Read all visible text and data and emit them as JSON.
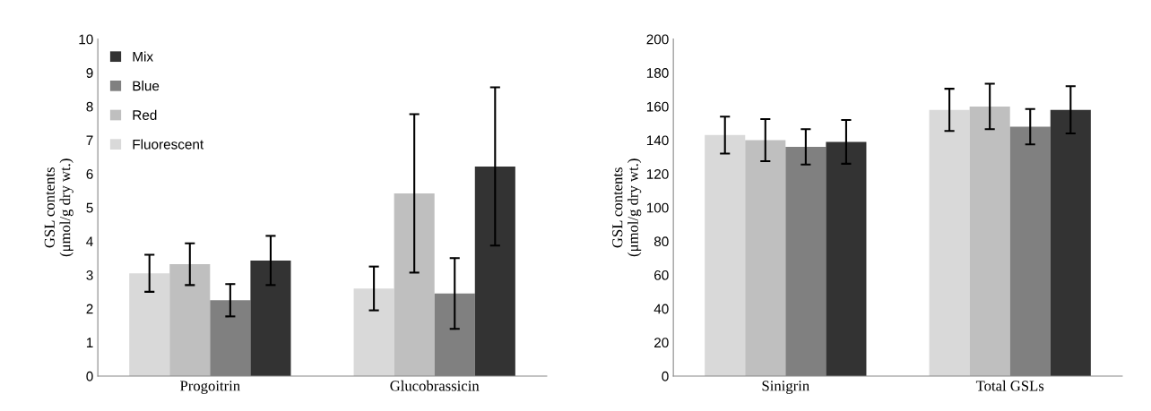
{
  "chart_data": [
    {
      "type": "bar",
      "ylabel": "GSL contents\n(μmol/g dry wt.)",
      "categories": [
        "Progoitrin",
        "Glucobrassicin"
      ],
      "ylim": [
        0,
        10
      ],
      "yticks": [
        0,
        1,
        2,
        3,
        4,
        5,
        6,
        7,
        8,
        9,
        10
      ],
      "grid": false,
      "legend": "top left",
      "series": [
        {
          "name": "Fluorescent",
          "color": "#d9d9d9",
          "values": [
            3.05,
            2.6
          ],
          "errors": [
            0.55,
            0.65
          ]
        },
        {
          "name": "Red",
          "color": "#bfbfbf",
          "values": [
            3.32,
            5.42
          ],
          "errors": [
            0.62,
            2.35
          ]
        },
        {
          "name": "Blue",
          "color": "#808080",
          "values": [
            2.25,
            2.45
          ],
          "errors": [
            0.48,
            1.05
          ]
        },
        {
          "name": "Mix",
          "color": "#333333",
          "values": [
            3.43,
            6.22
          ],
          "errors": [
            0.73,
            2.35
          ]
        }
      ]
    },
    {
      "type": "bar",
      "ylabel": "GSL contents\n(μmol/g dry wt.)",
      "categories": [
        "Sinigrin",
        "Total GSLs"
      ],
      "ylim": [
        0,
        200
      ],
      "yticks": [
        0,
        20,
        40,
        60,
        80,
        100,
        120,
        140,
        160,
        180,
        200
      ],
      "grid": false,
      "series": [
        {
          "color": "#d9d9d9",
          "values": [
            143,
            158
          ],
          "errors": [
            11,
            12.5
          ]
        },
        {
          "color": "#bfbfbf",
          "values": [
            140,
            160
          ],
          "errors": [
            12.5,
            13.5
          ]
        },
        {
          "color": "#808080",
          "values": [
            136,
            148
          ],
          "errors": [
            10.5,
            10.5
          ]
        },
        {
          "color": "#333333",
          "values": [
            139,
            158
          ],
          "errors": [
            13,
            14
          ]
        }
      ]
    }
  ]
}
